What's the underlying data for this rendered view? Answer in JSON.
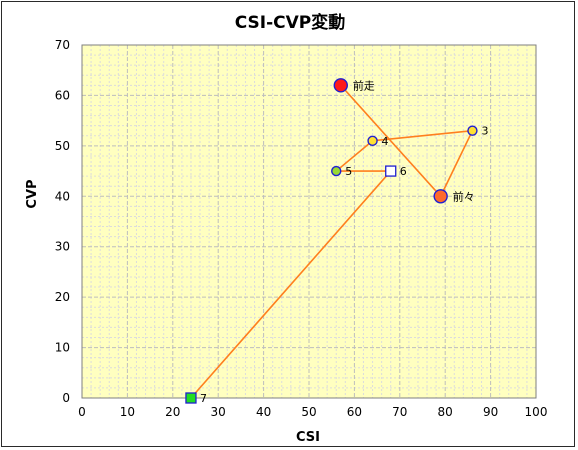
{
  "chart_data": {
    "type": "scatter",
    "title": "CSI-CVP変動",
    "xlabel": "CSI",
    "ylabel": "CVP",
    "xlim": [
      0,
      100
    ],
    "ylim": [
      0,
      70
    ],
    "xticks": [
      0,
      10,
      20,
      30,
      40,
      50,
      60,
      70,
      80,
      90,
      100
    ],
    "yticks": [
      0,
      10,
      20,
      30,
      40,
      50,
      60,
      70
    ],
    "grid": true,
    "legend": "none",
    "colors": {
      "plot_bg": "#ffffc0",
      "grid": "#bdbdbd",
      "line": "#ff7f1e",
      "marker_edge": "#1f1fd1"
    },
    "series": [
      {
        "points": [
          {
            "label": "前走",
            "x": 57,
            "y": 62,
            "marker": "circle-large",
            "fill": "#ff1a1a"
          },
          {
            "label": "前々",
            "x": 79,
            "y": 40,
            "marker": "circle-large",
            "fill": "#ff6a2a"
          },
          {
            "label": "3",
            "x": 86,
            "y": 53,
            "marker": "circle",
            "fill": "#ffe033"
          },
          {
            "label": "4",
            "x": 64,
            "y": 51,
            "marker": "circle",
            "fill": "#ffe033"
          },
          {
            "label": "5",
            "x": 56,
            "y": 45,
            "marker": "circle",
            "fill": "#99d933"
          },
          {
            "label": "6",
            "x": 68,
            "y": 45,
            "marker": "square",
            "fill": "#ffffff"
          },
          {
            "label": "7",
            "x": 24,
            "y": 0,
            "marker": "square",
            "fill": "#22dd22"
          }
        ]
      }
    ]
  }
}
